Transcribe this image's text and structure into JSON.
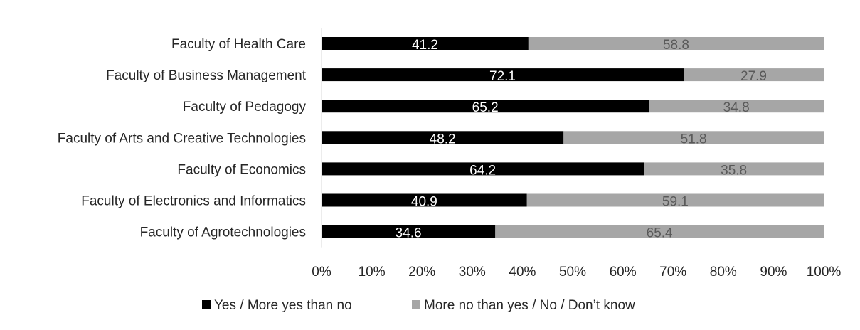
{
  "chart_data": {
    "type": "bar",
    "orientation": "horizontal",
    "stacked": "percent",
    "categories": [
      "Faculty of Health Care",
      "Faculty of Business Management",
      "Faculty of Pedagogy",
      "Faculty of Arts and Creative Technologies",
      "Faculty of Economics",
      "Faculty of Electronics and Informatics",
      "Faculty of Agrotechnologies"
    ],
    "series": [
      {
        "name": "Yes / More yes than no",
        "color": "#000000",
        "label_color": "#ffffff",
        "values": [
          41.2,
          72.1,
          65.2,
          48.2,
          64.2,
          40.9,
          34.6
        ]
      },
      {
        "name": "More no than yes / No / Don’t know",
        "color": "#a6a6a6",
        "label_color": "#595959",
        "values": [
          58.8,
          27.9,
          34.8,
          51.8,
          35.8,
          59.1,
          65.4
        ]
      }
    ],
    "x_ticks": [
      "0%",
      "10%",
      "20%",
      "30%",
      "40%",
      "50%",
      "60%",
      "70%",
      "80%",
      "90%",
      "100%"
    ],
    "xlim": [
      0,
      100
    ],
    "grid": false,
    "legend_position": "bottom"
  }
}
